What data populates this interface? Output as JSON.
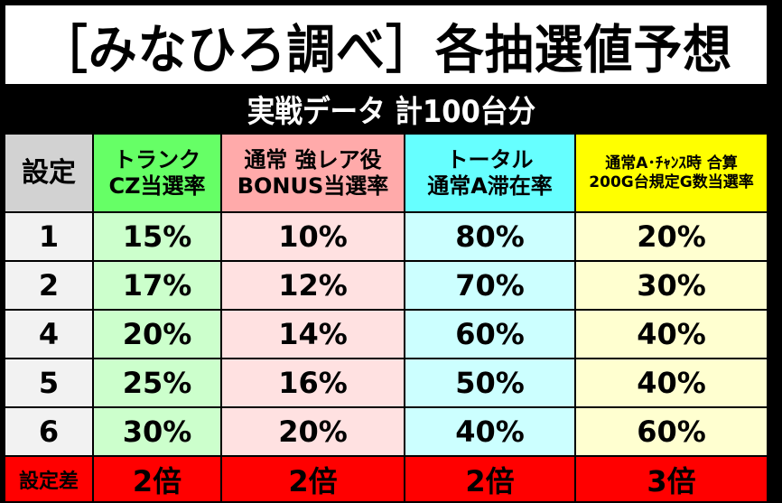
{
  "title": "［みなひろ調べ］各抽選値予想",
  "subtitle": "実戦データ 計100台分",
  "colors": {
    "background": "#000000",
    "header_setting": "#d2d2d2",
    "header_trunk": "#66ff66",
    "header_bonus": "#ffaaaa",
    "header_total": "#66ffff",
    "header_200g": "#ffff00",
    "footer_bg": "#ff0000",
    "footer_text": "#ffff00"
  },
  "table": {
    "headers": [
      {
        "lines": [
          "設定"
        ]
      },
      {
        "lines": [
          "トランク",
          "CZ当選率"
        ]
      },
      {
        "lines": [
          "通常 強レア役",
          "BONUS当選率"
        ]
      },
      {
        "lines": [
          "トータル",
          "通常A滞在率"
        ]
      },
      {
        "lines": [
          "通常A･ﾁｬﾝｽ時 合算",
          "200G台規定G数当選率"
        ]
      }
    ],
    "rows": [
      [
        "1",
        "15%",
        "10%",
        "80%",
        "20%"
      ],
      [
        "2",
        "17%",
        "12%",
        "70%",
        "30%"
      ],
      [
        "4",
        "20%",
        "14%",
        "60%",
        "40%"
      ],
      [
        "5",
        "25%",
        "16%",
        "50%",
        "40%"
      ],
      [
        "6",
        "30%",
        "20%",
        "40%",
        "60%"
      ]
    ],
    "footer": [
      "設定差",
      "2倍",
      "2倍",
      "2倍",
      "3倍"
    ]
  }
}
